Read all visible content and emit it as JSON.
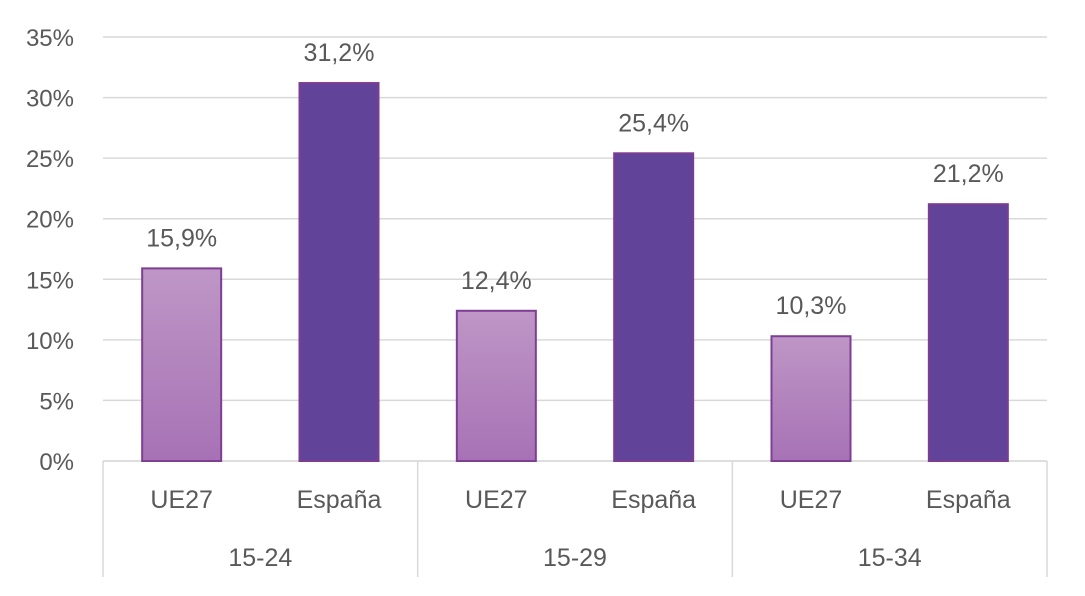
{
  "chart_data": {
    "type": "bar",
    "title": "",
    "xlabel": "",
    "ylabel": "",
    "ylim": [
      0,
      35
    ],
    "y_ticks": [
      "0%",
      "5%",
      "10%",
      "15%",
      "20%",
      "25%",
      "30%",
      "35%"
    ],
    "y_tick_values": [
      0,
      5,
      10,
      15,
      20,
      25,
      30,
      35
    ],
    "grid": true,
    "legend": "none",
    "groups": [
      "15-24",
      "15-29",
      "15-34"
    ],
    "subcategories": [
      "UE27",
      "España"
    ],
    "bars": [
      {
        "group": "15-24",
        "category": "UE27",
        "value": 15.9,
        "label": "15,9%"
      },
      {
        "group": "15-24",
        "category": "España",
        "value": 31.2,
        "label": "31,2%"
      },
      {
        "group": "15-29",
        "category": "UE27",
        "value": 12.4,
        "label": "12,4%"
      },
      {
        "group": "15-29",
        "category": "España",
        "value": 25.4,
        "label": "25,4%"
      },
      {
        "group": "15-34",
        "category": "UE27",
        "value": 10.3,
        "label": "10,3%"
      },
      {
        "group": "15-34",
        "category": "España",
        "value": 21.2,
        "label": "21,2%"
      }
    ],
    "colors": {
      "UE27_top": "#BE96C6",
      "UE27_bottom": "#A772B5",
      "UE27_stroke": "#7E3E93",
      "Espana_fill": "#614499",
      "Espana_stroke": "#7B3C92",
      "gridline": "#D9D9D9",
      "text": "#595959"
    }
  }
}
